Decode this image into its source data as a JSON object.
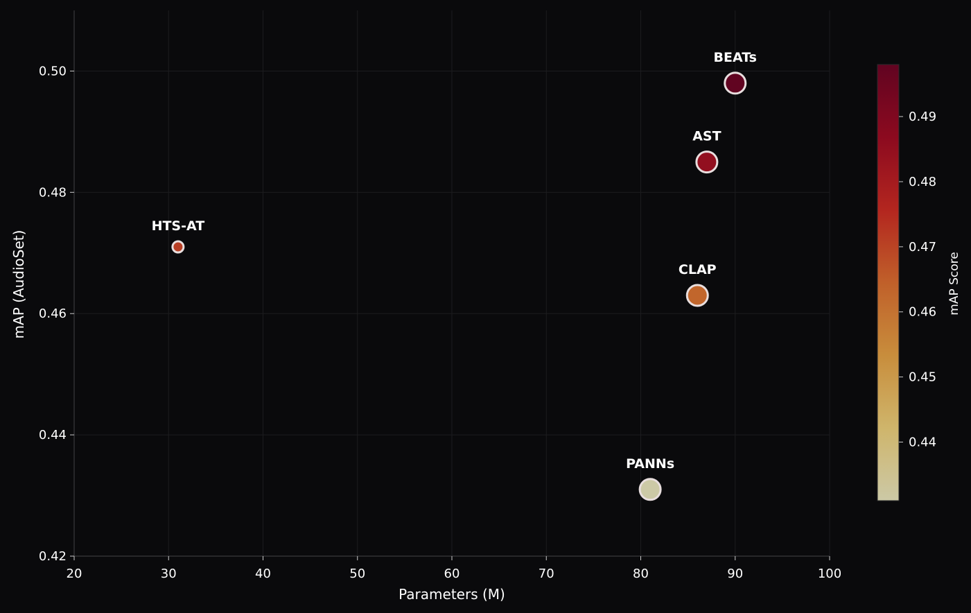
{
  "chart_data": {
    "type": "scatter",
    "xlabel": "Parameters (M)",
    "ylabel": "mAP (AudioSet)",
    "xlim": [
      20,
      100
    ],
    "ylim": [
      0.42,
      0.51
    ],
    "x_ticks": [
      20,
      30,
      40,
      50,
      60,
      70,
      80,
      90,
      100
    ],
    "y_ticks": [
      0.42,
      0.44,
      0.46,
      0.48,
      0.5
    ],
    "grid": true,
    "points": [
      {
        "label": "HTS-AT",
        "x": 31,
        "y": 0.471,
        "size": 8
      },
      {
        "label": "PANNs",
        "x": 81,
        "y": 0.431,
        "size": 15
      },
      {
        "label": "CLAP",
        "x": 86,
        "y": 0.463,
        "size": 15
      },
      {
        "label": "AST",
        "x": 87,
        "y": 0.485,
        "size": 15
      },
      {
        "label": "BEATs",
        "x": 90,
        "y": 0.498,
        "size": 15
      }
    ],
    "colorbar": {
      "label": "mAP Score",
      "range": [
        0.431,
        0.498
      ],
      "ticks": [
        0.44,
        0.45,
        0.46,
        0.47,
        0.48,
        0.49
      ],
      "colormap": [
        "#ccc9a6",
        "#cfb56b",
        "#c88d3c",
        "#c0602a",
        "#b3261f",
        "#8c0a1f",
        "#610421"
      ]
    }
  }
}
